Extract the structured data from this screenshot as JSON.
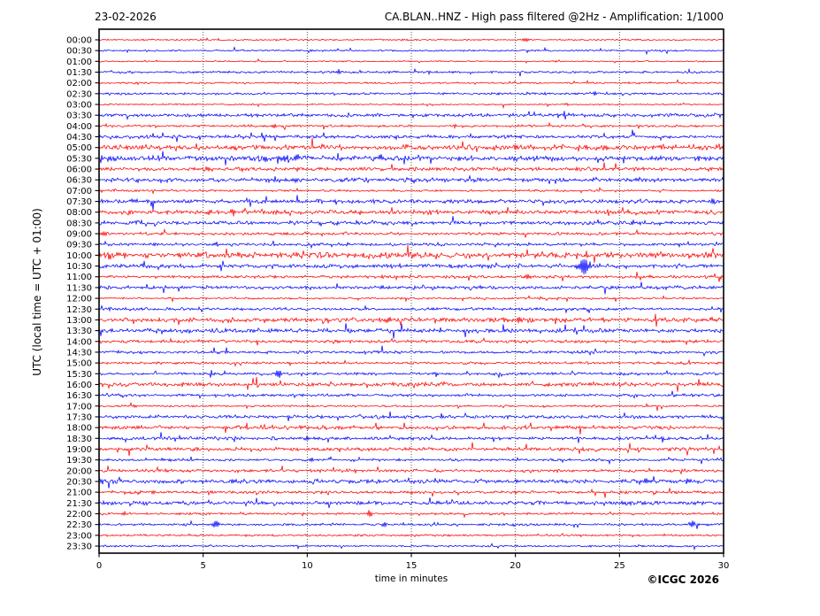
{
  "header": {
    "date": "23-02-2026",
    "title": "CA.BLAN..HNZ - High pass filtered @2Hz - Amplification: 1/1000"
  },
  "footer": {
    "copyright": "©ICGC 2026"
  },
  "chart_data": {
    "type": "line",
    "subtype": "helicorder-seismogram",
    "station": "CA.BLAN..HNZ",
    "date": "23-02-2026",
    "filter": "High pass filtered @2Hz",
    "amplification": "1/1000",
    "title_left": "23-02-2026",
    "title_right": "CA.BLAN..HNZ - High pass filtered @2Hz - Amplification: 1/1000",
    "xlabel": "time in minutes",
    "ylabel": "UTC (local time = UTC + 01:00)",
    "xlim": [
      0,
      30
    ],
    "xticks": [
      0,
      5,
      10,
      15,
      20,
      25,
      30
    ],
    "grid": {
      "vertical_dotted_minutes": [
        5,
        10,
        15,
        20,
        25
      ]
    },
    "legend": "none",
    "colors": {
      "red": "#ff0000",
      "blue": "#0000ff",
      "axis": "#000000",
      "grid": "#444444",
      "background": "#ffffff"
    },
    "row_interval_minutes": 30,
    "traces": [
      {
        "label": "00:00",
        "color": "red",
        "noise": 0.35,
        "events": [
          [
            20.5,
            3.2
          ]
        ]
      },
      {
        "label": "00:30",
        "color": "blue",
        "noise": 0.4,
        "events": [
          [
            10.2,
            1.2
          ],
          [
            18.0,
            0.8
          ],
          [
            24.9,
            1.0
          ]
        ]
      },
      {
        "label": "01:00",
        "color": "red",
        "noise": 0.3,
        "events": [
          [
            14.9,
            0.8
          ],
          [
            22.0,
            0.8
          ]
        ]
      },
      {
        "label": "01:30",
        "color": "blue",
        "noise": 0.5,
        "events": [
          [
            11.5,
            3.5
          ],
          [
            24.6,
            1.2
          ]
        ]
      },
      {
        "label": "02:00",
        "color": "red",
        "noise": 0.4,
        "events": [
          [
            1.8,
            1.4
          ],
          [
            12.8,
            1.2
          ]
        ]
      },
      {
        "label": "02:30",
        "color": "blue",
        "noise": 0.5,
        "events": [
          [
            15.4,
            1.0
          ],
          [
            19.2,
            1.4
          ],
          [
            23.8,
            1.8
          ]
        ]
      },
      {
        "label": "03:00",
        "color": "red",
        "noise": 0.35,
        "events": [
          [
            22.5,
            1.3
          ]
        ]
      },
      {
        "label": "03:30",
        "color": "blue",
        "noise": 0.8,
        "events": [
          [
            5.0,
            1.4
          ],
          [
            26.3,
            1.4
          ],
          [
            29.8,
            2.2
          ]
        ]
      },
      {
        "label": "04:00",
        "color": "red",
        "noise": 0.5,
        "events": [
          [
            8.4,
            2.8
          ],
          [
            13.5,
            1.4
          ],
          [
            17.1,
            2.2
          ]
        ]
      },
      {
        "label": "04:30",
        "color": "blue",
        "noise": 0.75,
        "events": [
          [
            8.6,
            1.6
          ],
          [
            25.2,
            1.5
          ]
        ]
      },
      {
        "label": "05:00",
        "color": "red",
        "noise": 1.15,
        "events": [
          [
            13.3,
            2.2
          ],
          [
            14.8,
            2.2
          ],
          [
            20.0,
            3.2
          ],
          [
            23.4,
            2.8
          ],
          [
            24.4,
            2.4
          ],
          [
            26.9,
            2.4
          ],
          [
            29.9,
            2.8
          ]
        ]
      },
      {
        "label": "05:30",
        "color": "blue",
        "noise": 1.2,
        "events": [
          [
            0.1,
            3.8
          ],
          [
            5.2,
            2.8
          ],
          [
            8.0,
            3.6
          ],
          [
            9.0,
            4.6
          ],
          [
            9.5,
            4.2
          ],
          [
            13.6,
            2.4
          ],
          [
            17.3,
            2.0
          ],
          [
            20.1,
            1.8
          ],
          [
            24.0,
            1.8
          ],
          [
            28.7,
            2.6
          ],
          [
            29.4,
            2.6
          ]
        ]
      },
      {
        "label": "06:00",
        "color": "red",
        "noise": 0.85,
        "events": [
          [
            5.2,
            3.6
          ],
          [
            9.6,
            1.8
          ]
        ]
      },
      {
        "label": "06:30",
        "color": "blue",
        "noise": 0.95,
        "events": [
          [
            1.8,
            2.2
          ],
          [
            5.3,
            2.2
          ],
          [
            9.4,
            2.2
          ],
          [
            15.2,
            1.8
          ],
          [
            21.0,
            1.8
          ],
          [
            26.0,
            1.8
          ]
        ]
      },
      {
        "label": "07:00",
        "color": "red",
        "noise": 0.45,
        "events": [
          [
            1.75,
            1.2
          ],
          [
            21.0,
            1.3
          ]
        ]
      },
      {
        "label": "07:30",
        "color": "blue",
        "noise": 0.95,
        "events": [
          [
            1.7,
            2.6
          ],
          [
            29.5,
            2.6
          ]
        ]
      },
      {
        "label": "08:00",
        "color": "red",
        "noise": 0.95,
        "events": [
          [
            5.3,
            3.2
          ],
          [
            6.4,
            2.6
          ],
          [
            8.6,
            1.8
          ],
          [
            13.0,
            1.8
          ]
        ]
      },
      {
        "label": "08:30",
        "color": "blue",
        "noise": 0.9,
        "events": [
          [
            19.8,
            2.2
          ],
          [
            23.5,
            1.8
          ]
        ]
      },
      {
        "label": "09:00",
        "color": "red",
        "noise": 0.65,
        "events": [
          [
            0.2,
            3.8
          ],
          [
            9.0,
            1.8
          ],
          [
            14.5,
            1.4
          ]
        ]
      },
      {
        "label": "09:30",
        "color": "blue",
        "noise": 0.65,
        "events": [
          [
            5.6,
            1.8
          ],
          [
            12.0,
            1.4
          ]
        ]
      },
      {
        "label": "10:00",
        "color": "red",
        "noise": 1.35,
        "events": [
          [
            23.4,
            2.0
          ]
        ]
      },
      {
        "label": "10:30",
        "color": "blue",
        "noise": 0.9,
        "events": [
          [
            5.6,
            1.4
          ],
          [
            22.9,
            2.6
          ],
          [
            23.3,
            11.0
          ]
        ]
      },
      {
        "label": "11:00",
        "color": "red",
        "noise": 0.65,
        "events": [
          [
            20.6,
            2.8
          ],
          [
            26.5,
            1.4
          ]
        ]
      },
      {
        "label": "11:30",
        "color": "blue",
        "noise": 0.75,
        "events": [
          [
            10.0,
            1.8
          ],
          [
            13.6,
            1.8
          ]
        ]
      },
      {
        "label": "12:00",
        "color": "red",
        "noise": 0.45,
        "events": []
      },
      {
        "label": "12:30",
        "color": "blue",
        "noise": 0.65,
        "events": [
          [
            0.5,
            1.8
          ],
          [
            21.0,
            1.6
          ]
        ]
      },
      {
        "label": "13:00",
        "color": "red",
        "noise": 1.05,
        "events": [
          [
            13.9,
            2.8
          ],
          [
            17.6,
            2.2
          ],
          [
            20.2,
            3.6
          ],
          [
            29.7,
            2.2
          ]
        ]
      },
      {
        "label": "13:30",
        "color": "blue",
        "noise": 0.95,
        "events": [
          [
            9.0,
            1.8
          ]
        ]
      },
      {
        "label": "14:00",
        "color": "red",
        "noise": 0.7,
        "events": []
      },
      {
        "label": "14:30",
        "color": "blue",
        "noise": 0.65,
        "events": [
          [
            2.0,
            1.8
          ]
        ]
      },
      {
        "label": "15:00",
        "color": "red",
        "noise": 0.55,
        "events": []
      },
      {
        "label": "15:30",
        "color": "blue",
        "noise": 0.6,
        "events": [
          [
            8.6,
            5.0
          ]
        ]
      },
      {
        "label": "16:00",
        "color": "red",
        "noise": 0.9,
        "events": [
          [
            4.1,
            1.8
          ]
        ]
      },
      {
        "label": "16:30",
        "color": "blue",
        "noise": 0.65,
        "events": [
          [
            29.7,
            1.8
          ]
        ]
      },
      {
        "label": "17:00",
        "color": "red",
        "noise": 0.45,
        "events": [
          [
            1.75,
            1.3
          ],
          [
            3.4,
            1.2
          ]
        ]
      },
      {
        "label": "17:30",
        "color": "blue",
        "noise": 0.75,
        "events": [
          [
            9.1,
            1.8
          ],
          [
            10.0,
            1.6
          ]
        ]
      },
      {
        "label": "18:00",
        "color": "red",
        "noise": 0.85,
        "events": [
          [
            9.8,
            1.6
          ],
          [
            12.7,
            1.5
          ],
          [
            13.5,
            1.5
          ]
        ]
      },
      {
        "label": "18:30",
        "color": "blue",
        "noise": 0.75,
        "events": [
          [
            3.9,
            1.6
          ],
          [
            10.0,
            2.2
          ],
          [
            13.8,
            1.6
          ]
        ]
      },
      {
        "label": "19:00",
        "color": "red",
        "noise": 0.8,
        "events": [
          [
            1.5,
            1.5
          ],
          [
            10.0,
            1.5
          ],
          [
            11.5,
            1.5
          ]
        ]
      },
      {
        "label": "19:30",
        "color": "blue",
        "noise": 0.55,
        "events": [
          [
            3.1,
            1.6
          ],
          [
            10.2,
            2.2
          ]
        ]
      },
      {
        "label": "20:00",
        "color": "red",
        "noise": 0.65,
        "events": [
          [
            3.2,
            1.8
          ],
          [
            22.0,
            1.4
          ]
        ]
      },
      {
        "label": "20:30",
        "color": "blue",
        "noise": 0.9,
        "events": [
          [
            0.2,
            3.8
          ],
          [
            26.3,
            3.2
          ],
          [
            28.3,
            3.2
          ]
        ]
      },
      {
        "label": "21:00",
        "color": "red",
        "noise": 0.65,
        "events": [
          [
            1.9,
            2.0
          ],
          [
            2.6,
            1.8
          ]
        ]
      },
      {
        "label": "21:30",
        "color": "blue",
        "noise": 0.9,
        "events": []
      },
      {
        "label": "22:00",
        "color": "red",
        "noise": 0.5,
        "events": [
          [
            1.2,
            2.8
          ],
          [
            9.8,
            1.4
          ],
          [
            13.0,
            4.2
          ]
        ]
      },
      {
        "label": "22:30",
        "color": "blue",
        "noise": 0.55,
        "events": [
          [
            5.6,
            4.6
          ],
          [
            13.7,
            3.2
          ],
          [
            28.5,
            4.6
          ]
        ]
      },
      {
        "label": "23:00",
        "color": "red",
        "noise": 0.45,
        "events": [
          [
            2.2,
            1.3
          ],
          [
            7.0,
            1.1
          ]
        ]
      },
      {
        "label": "23:30",
        "color": "blue",
        "noise": 0.4,
        "events": []
      }
    ]
  }
}
